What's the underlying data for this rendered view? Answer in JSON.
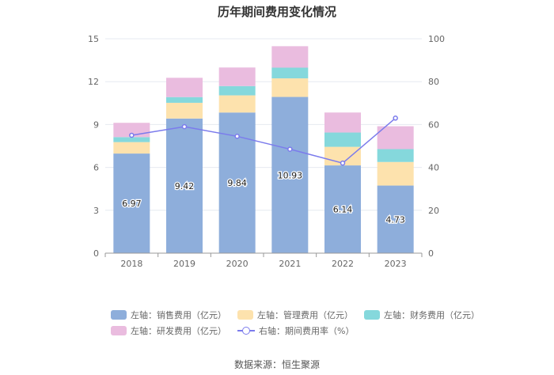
{
  "chart_data": {
    "type": "bar",
    "stacked": true,
    "title": "历年期间费用变化情况",
    "categories": [
      "2018",
      "2019",
      "2020",
      "2021",
      "2022",
      "2023"
    ],
    "series": [
      {
        "name": "左轴：销售费用（亿元）",
        "color": "#8eaedb",
        "axis": "left",
        "values": [
          6.97,
          9.42,
          9.84,
          10.93,
          6.14,
          4.73
        ],
        "labels": [
          "6.97",
          "9.42",
          "9.84",
          "10.93",
          "6.14",
          "4.73"
        ]
      },
      {
        "name": "左轴：管理费用（亿元）",
        "color": "#fde2ad",
        "axis": "left",
        "values": [
          0.8,
          1.1,
          1.2,
          1.3,
          1.3,
          1.65
        ]
      },
      {
        "name": "左轴：财务费用（亿元）",
        "color": "#85d8dc",
        "axis": "left",
        "values": [
          0.35,
          0.4,
          0.65,
          0.75,
          1.0,
          0.9
        ]
      },
      {
        "name": "左轴：研发费用（亿元）",
        "color": "#eabcdf",
        "axis": "left",
        "values": [
          1.0,
          1.35,
          1.3,
          1.5,
          1.4,
          1.6
        ]
      },
      {
        "name": "右轴：期间费用率（%）",
        "color": "#7b7bec",
        "axis": "right",
        "type": "line",
        "values": [
          55.0,
          59.0,
          54.5,
          48.5,
          42.0,
          63.0
        ]
      }
    ],
    "y_left": {
      "min": 0,
      "max": 15,
      "ticks": [
        "0",
        "3",
        "6",
        "9",
        "12",
        "15"
      ]
    },
    "y_right": {
      "min": 0,
      "max": 100,
      "ticks": [
        "0",
        "20",
        "40",
        "60",
        "80",
        "100"
      ]
    },
    "legend_position": "bottom",
    "grid": true
  },
  "source": "数据来源：恒生聚源"
}
